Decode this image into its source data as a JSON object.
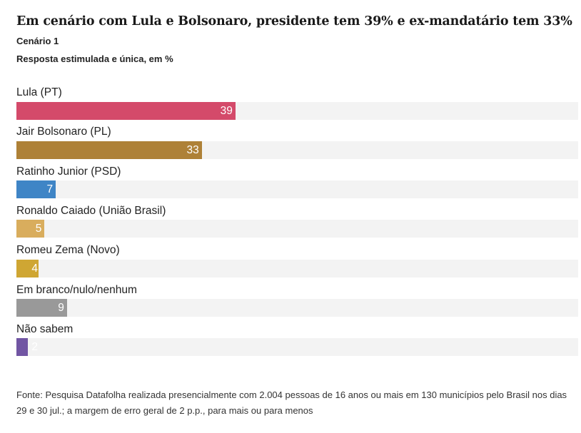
{
  "header": {
    "title": "Em cenário com Lula e Bolsonaro, presidente tem 39% e ex-mandatário tem 33%",
    "subtitle": "Cenário 1",
    "description": "Resposta estimulada e única, em %"
  },
  "footer": {
    "source": "Fonte: Pesquisa Datafolha realizada presencialmente com 2.004 pessoas de 16 anos ou mais em 130 municípios pelo Brasil nos dias 29 e 30 jul.; a margem de erro geral de 2 p.p., para mais ou para menos"
  },
  "chart_data": {
    "type": "bar",
    "orientation": "horizontal",
    "title": "Em cenário com Lula e Bolsonaro, presidente tem 39% e ex-mandatário tem 33%",
    "subtitle": "Cenário 1",
    "unit_note": "Resposta estimulada e única, em %",
    "xlim": [
      0,
      100
    ],
    "grid": false,
    "legend": "none",
    "categories": [
      "Lula (PT)",
      "Jair Bolsonaro (PL)",
      "Ratinho Junior (PSD)",
      "Ronaldo Caiado (União Brasil)",
      "Romeu Zema (Novo)",
      "Em branco/nulo/nenhum",
      "Não sabem"
    ],
    "values": [
      39,
      33,
      7,
      5,
      4,
      9,
      2
    ],
    "colors": [
      "#d44a6a",
      "#ae8137",
      "#3f85c6",
      "#d9ad5d",
      "#cfa633",
      "#999999",
      "#7155a3"
    ],
    "track_color": "#f3f3f3"
  }
}
